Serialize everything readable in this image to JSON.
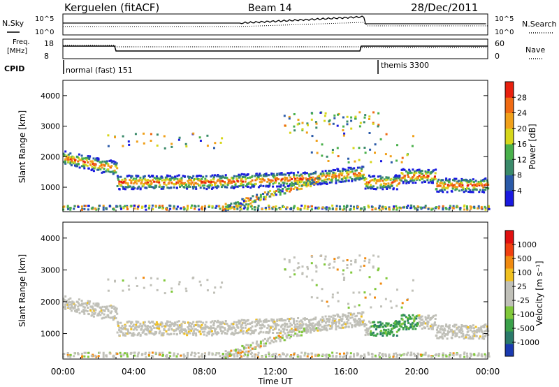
{
  "header": {
    "station": "Kerguelen (fitACF)",
    "beam": "Beam 14",
    "date": "28/Dec/2011"
  },
  "nsky_panel": {
    "left_label": "N.Sky",
    "right_label": "N.Search",
    "left_ticks": [
      "10^5",
      "10^0"
    ],
    "right_ticks": [
      "10^5",
      "10^0"
    ]
  },
  "freq_panel": {
    "left_label_1": "Freq.",
    "left_label_2": "[MHz]",
    "right_label": "Nave",
    "left_ticks": [
      "18",
      "8"
    ],
    "right_ticks": [
      "60",
      "0"
    ]
  },
  "cpid_panel": {
    "label": "CPID",
    "modes": [
      {
        "name": "normal (fast) 151",
        "start_hour": 0
      },
      {
        "name": "themis 3300",
        "start_hour": 18
      }
    ]
  },
  "chart_data": [
    {
      "type": "heatmap",
      "name": "power",
      "xlabel": "Time UT",
      "ylabel": "Slant Range [km]",
      "x_tick_labels": [
        "00:00",
        "04:00",
        "08:00",
        "12:00",
        "16:00",
        "20:00",
        "00:00"
      ],
      "x_range_hours": [
        0,
        24
      ],
      "y_range_km": [
        200,
        4500
      ],
      "y_ticks": [
        1000,
        2000,
        3000,
        4000
      ],
      "colorbar_label": "Power [dB]",
      "colorbar_ticks": [
        "28",
        "24",
        "20",
        "16",
        "12",
        "8",
        "4"
      ],
      "colors": [
        "#1a1ae0",
        "#2a5aa8",
        "#3a8a6a",
        "#49b04b",
        "#d6d61a",
        "#f0a01a",
        "#f06a12",
        "#e8200e"
      ]
    },
    {
      "type": "heatmap",
      "name": "velocity",
      "xlabel": "Time UT",
      "ylabel": "Slant Range [km]",
      "x_tick_labels": [
        "00:00",
        "04:00",
        "08:00",
        "12:00",
        "16:00",
        "20:00",
        "00:00"
      ],
      "x_range_hours": [
        0,
        24
      ],
      "y_range_km": [
        200,
        4500
      ],
      "y_ticks": [
        1000,
        2000,
        3000,
        4000
      ],
      "colorbar_label": "Velocity [m s⁻¹]",
      "colorbar_ticks": [
        "1000",
        "500",
        "100",
        "25",
        "-25",
        "-100",
        "-500",
        "-1000"
      ],
      "colors": [
        "#1a3ab0",
        "#2a7a6a",
        "#3aa04a",
        "#80c83a",
        "#c0c0b8",
        "#c0c0b8",
        "#f0c020",
        "#f08a10",
        "#f04010",
        "#e01010"
      ]
    }
  ]
}
